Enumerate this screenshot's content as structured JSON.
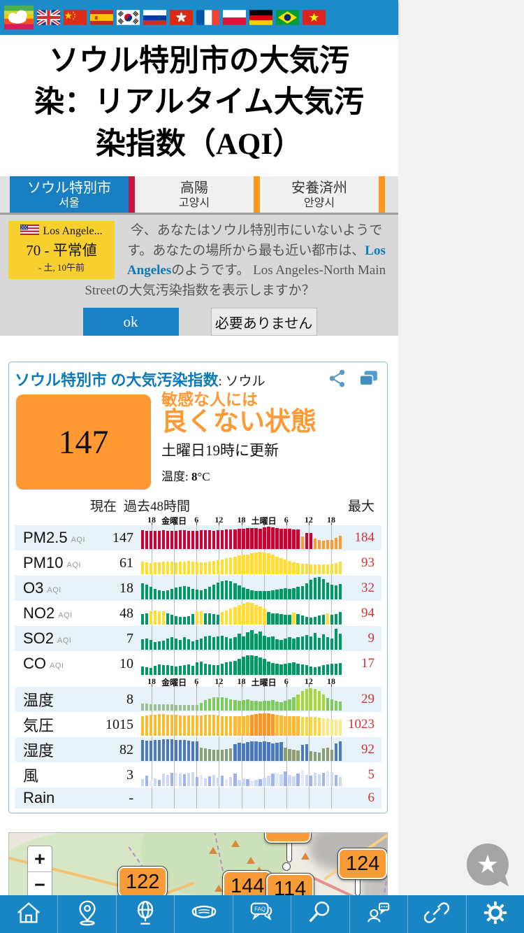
{
  "topbar": {
    "flags": [
      {
        "name": "aqicn-logo"
      },
      {
        "name": "flag-uk"
      },
      {
        "name": "flag-china"
      },
      {
        "name": "flag-spain"
      },
      {
        "name": "flag-korea"
      },
      {
        "name": "flag-russia"
      },
      {
        "name": "flag-hongkong"
      },
      {
        "name": "flag-france"
      },
      {
        "name": "flag-poland"
      },
      {
        "name": "flag-germany"
      },
      {
        "name": "flag-brazil"
      },
      {
        "name": "flag-vietnam"
      }
    ]
  },
  "title": {
    "bold": "ソウル特別市",
    "rest": "の大気汚染：リアルタイム大気汚染指数（AQI）"
  },
  "tabs": [
    {
      "label": "ソウル特別市",
      "sub": "서울",
      "active": true
    },
    {
      "label": "高陽",
      "sub": "고양시",
      "active": false
    },
    {
      "label": "安養済州",
      "sub": "안양시",
      "active": false
    }
  ],
  "notification": {
    "station_card": {
      "name": "Los Angele...",
      "value_line": "70 - 平常値",
      "time_line": "- 土, 10午前"
    },
    "message": {
      "p1": "今、あなたはソウル特別市にいないようです。あなたの場所から最も近い都市は、",
      "link": "Los Angeles",
      "p2": "のようです。 Los Angeles-North Main Streetの大気汚染指数を表示しますか？"
    },
    "ok_label": "ok",
    "dismiss_label": "必要ありません"
  },
  "aqi_card": {
    "title_link": "ソウル特別市 の大気汚染指数",
    "title_suffix": ": ソウル",
    "icons": [
      "share-icon",
      "copy-icon"
    ],
    "aqi_value": "147",
    "level_line1": "敏感な人には",
    "level_line2": "良くない状態",
    "updated": "土曜日19時に更新",
    "temp_label": "温度:",
    "temp_value": "8",
    "temp_unit": "°C",
    "col_current": "現在",
    "col_past": "過去48時間",
    "col_max": "最大",
    "axis_labels": [
      "18",
      "金曜日",
      "6",
      "12",
      "18",
      "土曜日",
      "6",
      "12",
      "18"
    ],
    "palette": {
      "r": "#cc0033",
      "o": "#ff9933",
      "y": "#ffde33",
      "g": "#009966",
      "a": "#9cbf93",
      "b": "#7fc95e",
      "c": "#a9d834",
      "d": "#fbbc30",
      "e": "#f8981f",
      "f": "#fdd63a",
      "i": "#fbe982",
      "h": "#4d79bb",
      "m": "#8d9e72",
      "u": "#ccd9f2",
      "v": "#9fb3e4",
      "w": "#e2e9f9"
    },
    "rows": [
      {
        "name": "PM2.5",
        "sub": "AQI",
        "value": "147",
        "max": "184",
        "heights": [
          82,
          80,
          79,
          80,
          81,
          82,
          81,
          80,
          81,
          82,
          82,
          81,
          80,
          81,
          82,
          83,
          82,
          81,
          82,
          84,
          85,
          86,
          88,
          89,
          90,
          92,
          93,
          92,
          91,
          97,
          100,
          95,
          92,
          91,
          90,
          89,
          88,
          86,
          55,
          70,
          72,
          45,
          40,
          38,
          39,
          41,
          48,
          60
        ],
        "colors": "rrrrrrrrrrrrrrrrrrrrrrrrrrrrrrrrrrrrrrorrooooooo"
      },
      {
        "name": "PM10",
        "sub": "AQI",
        "value": "61",
        "max": "93",
        "heights": [
          55,
          52,
          50,
          51,
          53,
          55,
          56,
          55,
          54,
          55,
          57,
          58,
          56,
          55,
          54,
          53,
          55,
          58,
          62,
          66,
          70,
          74,
          78,
          82,
          85,
          88,
          92,
          96,
          100,
          97,
          92,
          85,
          78,
          70,
          64,
          58,
          54,
          50,
          47,
          45,
          44,
          43,
          42,
          43,
          44,
          46,
          50,
          55
        ],
        "colors": "yyyyyyyyyyyyyyyyyyyyyyyyyyyyyyyyyyyyyyyyyyyyyyyy"
      },
      {
        "name": "O3",
        "sub": "AQI",
        "value": "18",
        "max": "32",
        "heights": [
          70,
          65,
          55,
          45,
          40,
          38,
          40,
          45,
          52,
          55,
          58,
          55,
          45,
          42,
          40,
          45,
          55,
          65,
          75,
          80,
          82,
          80,
          72,
          62,
          52,
          45,
          40,
          38,
          37,
          37,
          38,
          40,
          42,
          45,
          50,
          45,
          48,
          55,
          60,
          70,
          85,
          95,
          100,
          90,
          75,
          65,
          62,
          68
        ],
        "colors": "gggggggggggggggggggggggggggggggggggggggggggggggg"
      },
      {
        "name": "NO2",
        "sub": "AQI",
        "value": "48",
        "max": "94",
        "heights": [
          45,
          50,
          60,
          62,
          60,
          58,
          50,
          42,
          38,
          35,
          33,
          38,
          45,
          58,
          60,
          48,
          50,
          46,
          44,
          55,
          62,
          70,
          78,
          85,
          92,
          100,
          95,
          88,
          80,
          70,
          55,
          50,
          48,
          45,
          42,
          44,
          52,
          46,
          40,
          35,
          32,
          35,
          40,
          44,
          50,
          42,
          46,
          55
        ],
        "colors": "ggyyyygggggggyyggggyyyyyyyyyyyggggggygggggggyggg"
      },
      {
        "name": "SO2",
        "sub": "AQI",
        "value": "7",
        "max": "9",
        "heights": [
          45,
          50,
          42,
          35,
          38,
          40,
          48,
          55,
          50,
          42,
          55,
          45,
          38,
          42,
          50,
          60,
          62,
          55,
          58,
          62,
          55,
          48,
          55,
          70,
          60,
          78,
          88,
          72,
          80,
          62,
          55,
          58,
          45,
          42,
          48,
          55,
          50,
          55,
          60,
          65,
          58,
          75,
          52,
          68,
          55,
          48,
          92,
          70
        ],
        "colors": "gggggggggggggggggggggggggggggggggggggggggggggggg"
      },
      {
        "name": "CO",
        "sub": "AQI",
        "value": "10",
        "max": "17",
        "heights": [
          38,
          35,
          32,
          40,
          45,
          44,
          42,
          40,
          38,
          40,
          42,
          45,
          40,
          55,
          58,
          48,
          45,
          42,
          44,
          50,
          55,
          58,
          62,
          70,
          80,
          88,
          85,
          82,
          78,
          70,
          60,
          52,
          48,
          45,
          48,
          52,
          55,
          50,
          45,
          42,
          38,
          35,
          38,
          42,
          45,
          48,
          50,
          52
        ],
        "colors": "gggggggggggggggggggggggggggggggggggggggggggggggg"
      },
      {
        "name": "温度",
        "sub": "",
        "value": "8",
        "max": "29",
        "heights": [
          30,
          30,
          29,
          29,
          28,
          28,
          27,
          27,
          26,
          26,
          25,
          25,
          24,
          26,
          35,
          45,
          52,
          58,
          60,
          58,
          55,
          50,
          45,
          42,
          45,
          48,
          44,
          42,
          40,
          42,
          44,
          46,
          40,
          38,
          42,
          50,
          60,
          72,
          85,
          95,
          100,
          95,
          85,
          70,
          55,
          48,
          42,
          40
        ],
        "colors": "aaaaaaaaaaaaaabbbbbbbbbbbbbbbbbbbbbbbcccccccbbbb"
      },
      {
        "name": "気圧",
        "sub": "",
        "value": "1015",
        "max": "1023",
        "heights": [
          88,
          90,
          92,
          94,
          95,
          95,
          94,
          93,
          92,
          91,
          90,
          90,
          89,
          90,
          91,
          92,
          93,
          92,
          90,
          88,
          87,
          86,
          85,
          86,
          88,
          90,
          92,
          95,
          98,
          100,
          98,
          96,
          93,
          90,
          88,
          86,
          85,
          85,
          84,
          84,
          83,
          82,
          80,
          78,
          76,
          74,
          72,
          70
        ],
        "colors": "ddddddddddddddddddddddddddeeeeeeddddddfffffiiiii"
      },
      {
        "name": "湿度",
        "sub": "",
        "value": "82",
        "max": "92",
        "heights": [
          92,
          90,
          91,
          93,
          94,
          95,
          96,
          95,
          94,
          93,
          92,
          90,
          88,
          86,
          60,
          55,
          52,
          50,
          48,
          50,
          52,
          55,
          75,
          80,
          78,
          82,
          85,
          88,
          84,
          86,
          82,
          78,
          80,
          84,
          58,
          52,
          48,
          45,
          70,
          75,
          42,
          40,
          38,
          55,
          60,
          50,
          78,
          85
        ],
        "colors": "hhhhhhhhhhhhhhmmmmmmmmhhhhhhhhhhhhmmmmhhmmmmmmhh"
      },
      {
        "name": "風",
        "sub": "",
        "value": "3",
        "max": "5",
        "heights": [
          30,
          45,
          25,
          35,
          28,
          55,
          50,
          60,
          58,
          55,
          52,
          58,
          62,
          40,
          48,
          35,
          42,
          50,
          38,
          45,
          30,
          40,
          55,
          28,
          35,
          30,
          25,
          28,
          32,
          38,
          45,
          55,
          60,
          52,
          65,
          48,
          42,
          55,
          70,
          50,
          45,
          58,
          52,
          60,
          68,
          62,
          48,
          40
        ],
        "colors": "uvwuvuuvwuvuuvwuvuuvwuvuuvwuvuuvwuvuuvwuvuuvwuvu"
      },
      {
        "name": "Rain",
        "sub": "",
        "value": "-",
        "max": "6",
        "heights": [],
        "colors": ""
      }
    ]
  },
  "map": {
    "zoom_in": "+",
    "zoom_out": "−",
    "markers": [
      {
        "label": "122"
      },
      {
        "label": "144"
      },
      {
        "label": "114"
      },
      {
        "label": "124"
      },
      {
        "label": ""
      }
    ]
  },
  "navbar": {
    "items": [
      {
        "icon": "home-icon"
      },
      {
        "icon": "location-pin-icon"
      },
      {
        "icon": "globe-icon"
      },
      {
        "icon": "face-mask-icon"
      },
      {
        "icon": "faq-icon"
      },
      {
        "icon": "search-icon"
      },
      {
        "icon": "contact-icon"
      },
      {
        "icon": "link-icon"
      },
      {
        "icon": "settings-gear-icon"
      }
    ]
  },
  "feedback": {
    "star": "★"
  }
}
